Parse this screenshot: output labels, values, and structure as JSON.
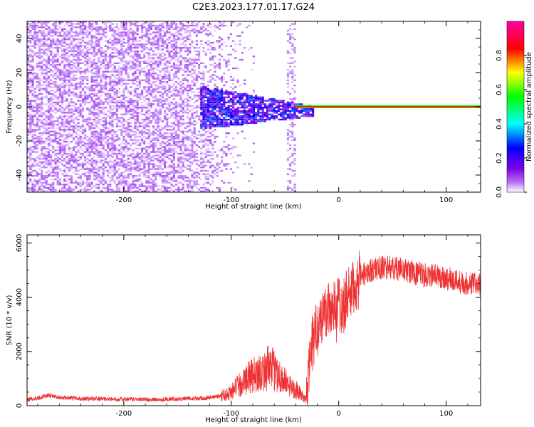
{
  "title": "C2E3.2023.177.01.17.G24",
  "chart_data": [
    {
      "type": "heatmap",
      "xlabel": "Height of straight line (km)",
      "ylabel": "Frequency (Hz)",
      "xlim": [
        -290,
        132
      ],
      "ylim": [
        -50,
        50
      ],
      "xticks": [
        -200,
        -100,
        0,
        100
      ],
      "yticks": [
        -40,
        -20,
        0,
        20,
        40
      ],
      "grid": false,
      "colorbar": {
        "label": "Normalized spectral amplitude",
        "range": [
          0,
          1
        ],
        "ticks": [
          0.0,
          0.2,
          0.4,
          0.6,
          0.8
        ],
        "tick_labels": [
          "0.0",
          "0.2",
          "0.4",
          "0.6",
          "0.8"
        ],
        "colormap": [
          "#ffffff",
          "#b66cf7",
          "#7a00e6",
          "#0000ff",
          "#00ffff",
          "#00ff00",
          "#ffff00",
          "#ff0000",
          "#ff00a0"
        ]
      },
      "features": {
        "noise_region_x": [
          -290,
          -105
        ],
        "signal_band_x": [
          -130,
          -25
        ],
        "carrier_line_x": [
          -40,
          132
        ],
        "carrier_line_y": 0
      }
    },
    {
      "type": "line",
      "xlabel": "Height of straight line (km)",
      "ylabel": "SNR (10 * v/v)",
      "xlim": [
        -290,
        132
      ],
      "ylim": [
        0,
        6300
      ],
      "xticks": [
        -200,
        -100,
        0,
        100
      ],
      "yticks": [
        0,
        2000,
        4000,
        6000
      ],
      "grid": false,
      "color": "#ee3333",
      "x": [
        -290,
        -280,
        -270,
        -260,
        -250,
        -240,
        -230,
        -220,
        -210,
        -200,
        -190,
        -180,
        -170,
        -160,
        -150,
        -140,
        -130,
        -120,
        -110,
        -100,
        -95,
        -90,
        -85,
        -80,
        -75,
        -70,
        -65,
        -60,
        -55,
        -50,
        -45,
        -40,
        -35,
        -30,
        -27,
        -25,
        -22,
        -20,
        -17,
        -15,
        -12,
        -10,
        -7,
        -5,
        -2,
        0,
        3,
        5,
        8,
        10,
        15,
        20,
        25,
        30,
        40,
        50,
        60,
        70,
        80,
        90,
        100,
        110,
        120,
        132
      ],
      "y": [
        220,
        280,
        380,
        300,
        280,
        250,
        260,
        250,
        240,
        230,
        240,
        230,
        220,
        240,
        250,
        260,
        270,
        300,
        350,
        500,
        700,
        800,
        1000,
        1100,
        1200,
        1300,
        1400,
        1300,
        1100,
        900,
        700,
        600,
        400,
        200,
        1600,
        2200,
        2600,
        2900,
        3100,
        3300,
        3400,
        3700,
        3500,
        3900,
        3300,
        4000,
        3500,
        3800,
        4100,
        4000,
        4400,
        4700,
        4900,
        5000,
        5100,
        5100,
        5000,
        4900,
        4800,
        4800,
        4700,
        4600,
        4500,
        4500
      ]
    }
  ]
}
